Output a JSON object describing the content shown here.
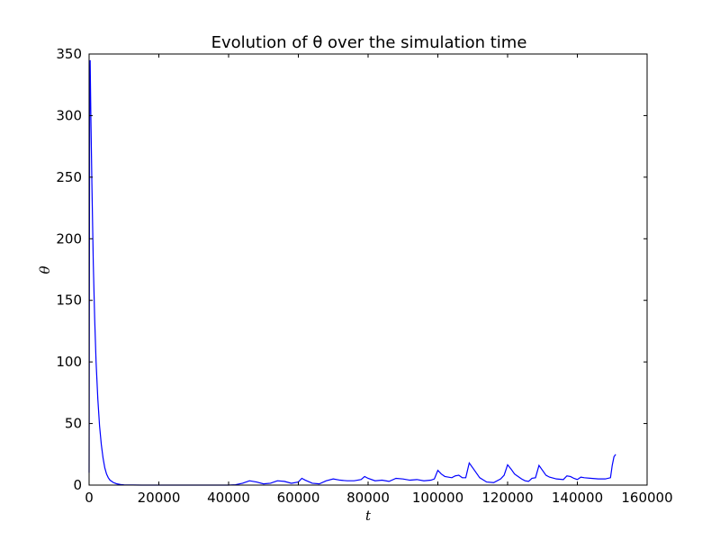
{
  "chart_data": {
    "type": "line",
    "title": "Evolution of θ over the simulation time",
    "xlabel": "t",
    "ylabel": "θ",
    "xlim": [
      0,
      160000
    ],
    "ylim": [
      0,
      350
    ],
    "xticks": [
      0,
      20000,
      40000,
      60000,
      80000,
      100000,
      120000,
      140000,
      160000
    ],
    "yticks": [
      0,
      50,
      100,
      150,
      200,
      250,
      300,
      350
    ],
    "grid": false,
    "series": [
      {
        "color": "#0000ff",
        "points": [
          [
            0,
            10
          ],
          [
            150,
            300
          ],
          [
            300,
            345
          ],
          [
            500,
            300
          ],
          [
            800,
            245
          ],
          [
            1200,
            180
          ],
          [
            1600,
            135
          ],
          [
            2000,
            100
          ],
          [
            2500,
            70
          ],
          [
            3000,
            48
          ],
          [
            3500,
            33
          ],
          [
            4000,
            22
          ],
          [
            4500,
            14
          ],
          [
            5000,
            9
          ],
          [
            5500,
            6
          ],
          [
            6000,
            4
          ],
          [
            7000,
            2
          ],
          [
            8000,
            1
          ],
          [
            9000,
            0.5
          ],
          [
            10000,
            0.2
          ],
          [
            15000,
            0
          ],
          [
            30000,
            0
          ],
          [
            40000,
            0
          ],
          [
            42000,
            0.3
          ],
          [
            44000,
            1.5
          ],
          [
            46000,
            3.5
          ],
          [
            48000,
            2.5
          ],
          [
            50000,
            1
          ],
          [
            52000,
            1.5
          ],
          [
            54000,
            3.5
          ],
          [
            56000,
            3
          ],
          [
            58000,
            1.5
          ],
          [
            60000,
            2.5
          ],
          [
            61000,
            5.5
          ],
          [
            62000,
            4
          ],
          [
            64000,
            1.5
          ],
          [
            66000,
            1
          ],
          [
            68000,
            3.5
          ],
          [
            70000,
            5
          ],
          [
            72000,
            4
          ],
          [
            74000,
            3.5
          ],
          [
            76000,
            3.5
          ],
          [
            78000,
            4.5
          ],
          [
            79000,
            7
          ],
          [
            80000,
            5.5
          ],
          [
            82000,
            3.5
          ],
          [
            84000,
            4
          ],
          [
            86000,
            3
          ],
          [
            88000,
            5.5
          ],
          [
            90000,
            5
          ],
          [
            92000,
            4
          ],
          [
            94000,
            4.5
          ],
          [
            96000,
            3.5
          ],
          [
            98000,
            4
          ],
          [
            99000,
            5
          ],
          [
            100000,
            12
          ],
          [
            101000,
            9
          ],
          [
            102000,
            7
          ],
          [
            104000,
            6
          ],
          [
            105000,
            7.5
          ],
          [
            106000,
            8
          ],
          [
            107000,
            6
          ],
          [
            108000,
            6
          ],
          [
            109000,
            18
          ],
          [
            110000,
            14
          ],
          [
            111000,
            10
          ],
          [
            112000,
            6
          ],
          [
            114000,
            2.5
          ],
          [
            116000,
            2
          ],
          [
            118000,
            5
          ],
          [
            119000,
            8
          ],
          [
            120000,
            16.5
          ],
          [
            121000,
            13
          ],
          [
            122000,
            9
          ],
          [
            124000,
            5
          ],
          [
            125000,
            3.5
          ],
          [
            126000,
            3
          ],
          [
            127000,
            5.5
          ],
          [
            128000,
            6
          ],
          [
            129000,
            16
          ],
          [
            130000,
            12
          ],
          [
            131000,
            8
          ],
          [
            132000,
            6.5
          ],
          [
            134000,
            5
          ],
          [
            136000,
            4.5
          ],
          [
            137000,
            7.5
          ],
          [
            138000,
            7
          ],
          [
            139000,
            5.5
          ],
          [
            140000,
            4.5
          ],
          [
            141000,
            6.5
          ],
          [
            142000,
            6
          ],
          [
            144000,
            5.5
          ],
          [
            146000,
            5
          ],
          [
            148000,
            5
          ],
          [
            149500,
            6
          ],
          [
            150000,
            16
          ],
          [
            150500,
            23
          ],
          [
            151000,
            25
          ]
        ]
      }
    ]
  }
}
